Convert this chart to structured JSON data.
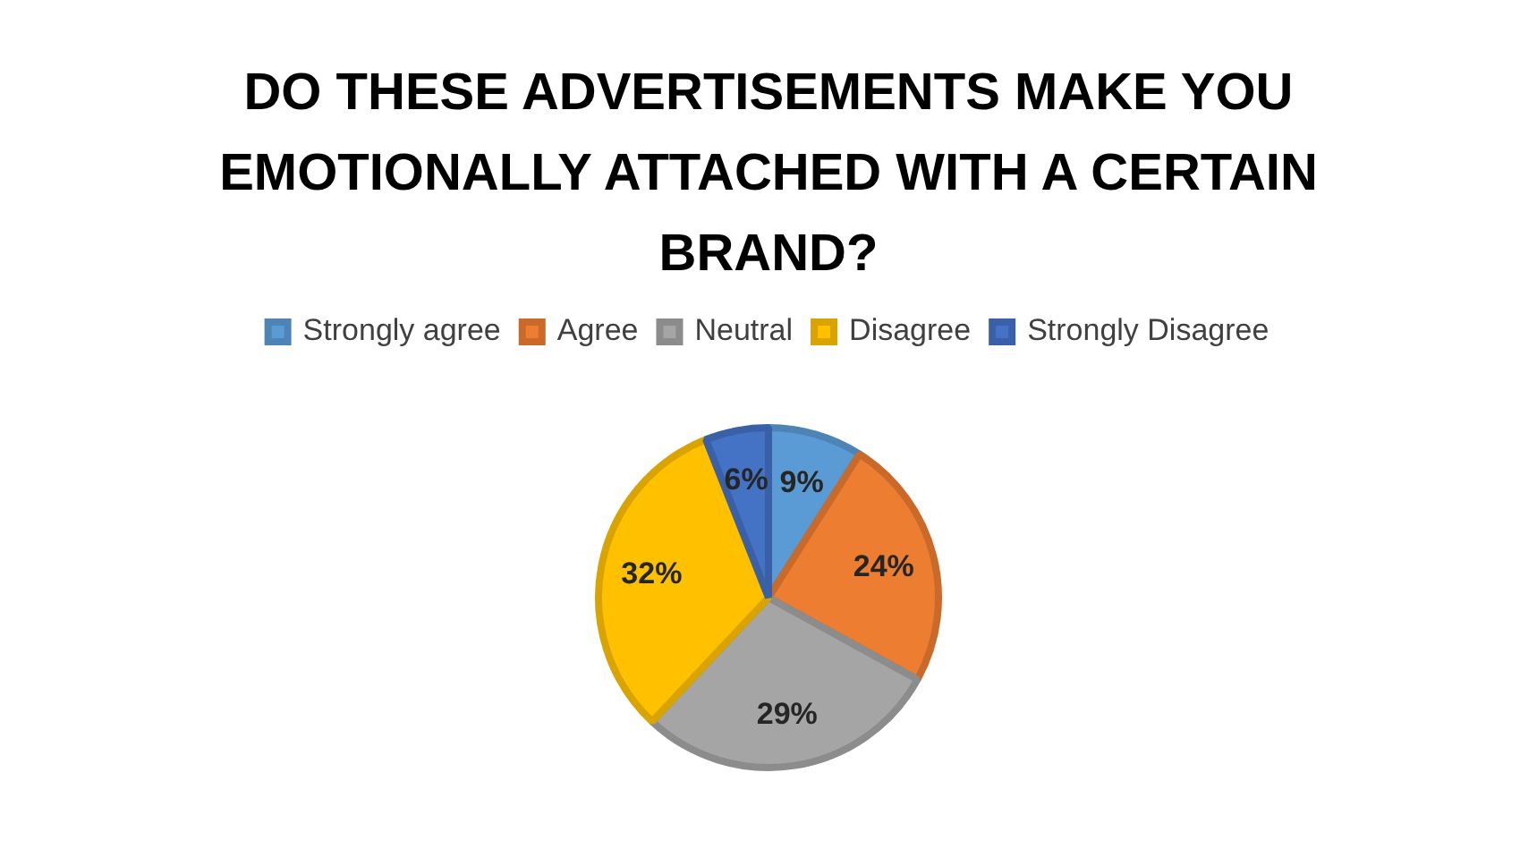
{
  "chart_data": {
    "type": "pie",
    "title": "DO THESE ADVERTISEMENTS MAKE YOU EMOTIONALLY ATTACHED WITH A CERTAIN BRAND?",
    "categories": [
      "Strongly agree",
      "Agree",
      "Neutral",
      "Disagree",
      "Strongly Disagree"
    ],
    "values": [
      9,
      24,
      29,
      32,
      6
    ],
    "value_labels": [
      "9%",
      "24%",
      "29%",
      "32%",
      "6%"
    ],
    "colors": [
      "#5b9bd5",
      "#ed7d31",
      "#a5a5a5",
      "#ffc000",
      "#4472c4"
    ],
    "legend": "top"
  }
}
